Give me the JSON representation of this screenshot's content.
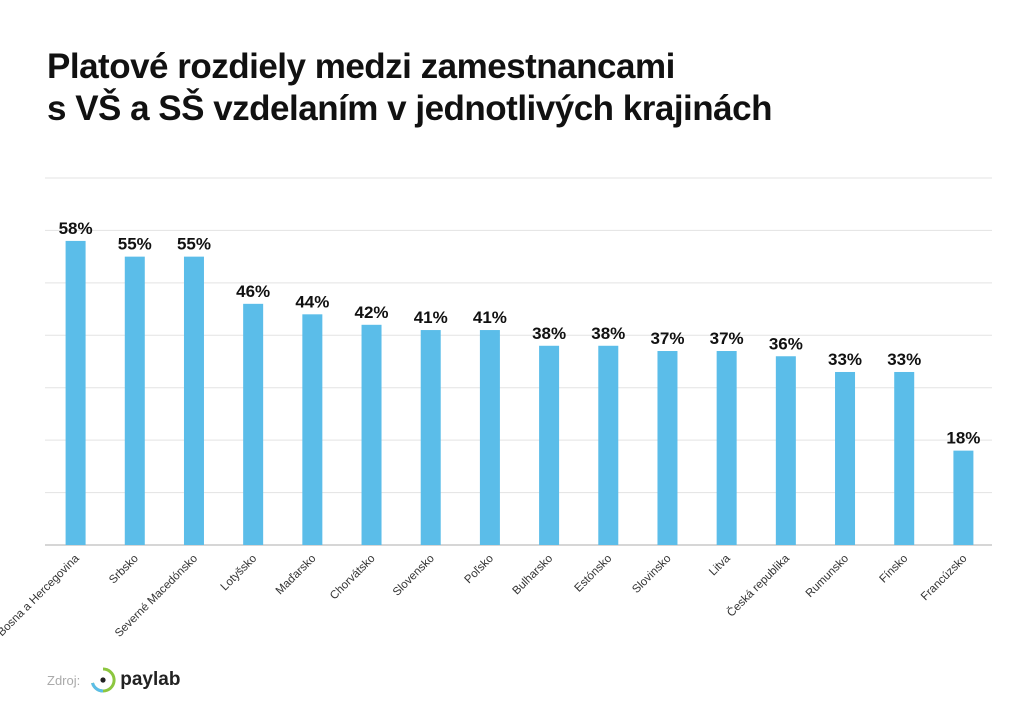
{
  "title_line1": "Platové rozdiely medzi zamestnancami",
  "title_line2": "s VŠ a SŠ vzdelaním v jednotlivých krajinách",
  "source_label": "Zdroj:",
  "source_brand": "paylab",
  "colors": {
    "bar": "#5bbde9",
    "grid": "#e3e3e3",
    "logo_green": "#8cc63f",
    "logo_blue": "#5bbde9"
  },
  "chart_data": {
    "type": "bar",
    "title": "Platové rozdiely medzi zamestnancami s VŠ a SŠ vzdelaním v jednotlivých krajinách",
    "xlabel": "",
    "ylabel": "",
    "ylim": [
      0,
      70
    ],
    "grid": true,
    "categories": [
      "Bosna a Hercegovina",
      "Srbsko",
      "Severné Macedónsko",
      "Lotyšsko",
      "Maďarsko",
      "Chorvátsko",
      "Slovensko",
      "Poľsko",
      "Bulharsko",
      "Estónsko",
      "Slovinsko",
      "Litva",
      "Česká republika",
      "Rumunsko",
      "Fínsko",
      "Francúzsko"
    ],
    "values": [
      58,
      55,
      55,
      46,
      44,
      42,
      41,
      41,
      38,
      38,
      37,
      37,
      36,
      33,
      33,
      18
    ],
    "value_labels": [
      "58%",
      "55%",
      "55%",
      "46%",
      "44%",
      "42%",
      "41%",
      "41%",
      "38%",
      "38%",
      "37%",
      "37%",
      "36%",
      "33%",
      "33%",
      "18%"
    ]
  }
}
